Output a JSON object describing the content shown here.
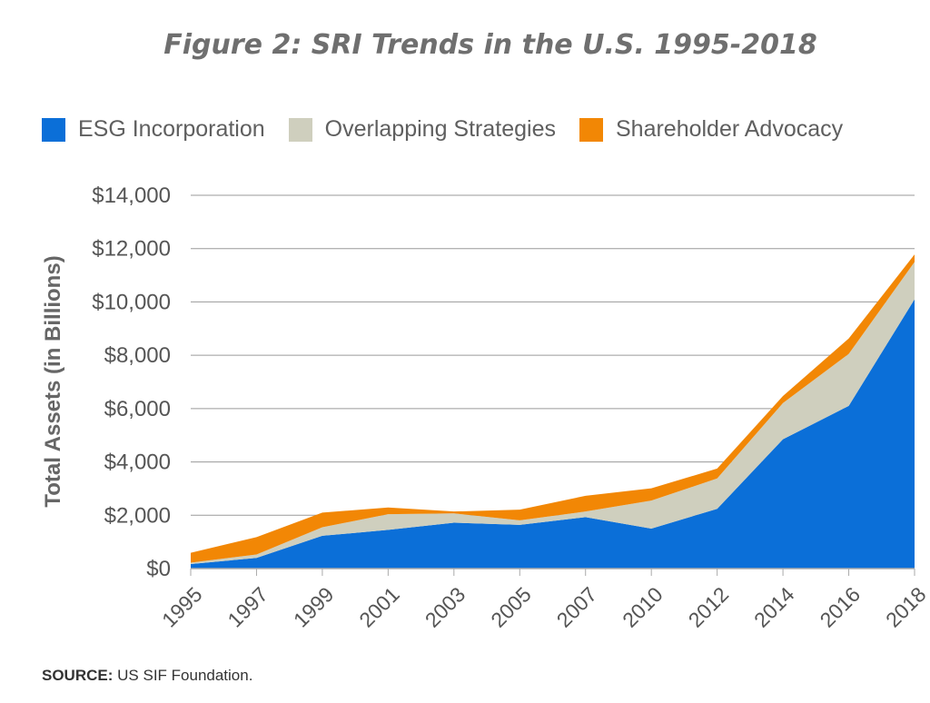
{
  "title": "Figure 2: SRI Trends in the U.S. 1995-2018",
  "source": {
    "label": "SOURCE:",
    "text": "US SIF Foundation."
  },
  "chart_data": {
    "type": "area",
    "stacked": true,
    "x": [
      "1995",
      "1997",
      "1999",
      "2001",
      "2003",
      "2005",
      "2007",
      "2010",
      "2012",
      "2014",
      "2016",
      "2018"
    ],
    "series": [
      {
        "name": "ESG Incorporation",
        "color": "#0b6fd8",
        "values": [
          170,
          400,
          1230,
          1450,
          1720,
          1640,
          1930,
          1500,
          2240,
          4850,
          6100,
          10100
        ]
      },
      {
        "name": "Overlapping Strategies",
        "color": "#cfcfbe",
        "values": [
          50,
          130,
          320,
          590,
          350,
          170,
          210,
          1050,
          1140,
          1360,
          1950,
          1400
        ]
      },
      {
        "name": "Shareholder Advocacy",
        "color": "#f28705",
        "values": [
          370,
          650,
          550,
          250,
          70,
          400,
          590,
          460,
          370,
          260,
          580,
          280
        ]
      }
    ],
    "ylabel": "Total Assets (in Billions)",
    "ylim": [
      0,
      14000
    ],
    "yticks": [
      0,
      2000,
      4000,
      6000,
      8000,
      10000,
      12000,
      14000
    ],
    "ytick_labels": [
      "$0",
      "$2,000",
      "$4,000",
      "$6,000",
      "$8,000",
      "$10,000",
      "$12,000",
      "$14,000"
    ],
    "grid": true,
    "legend": "top"
  }
}
